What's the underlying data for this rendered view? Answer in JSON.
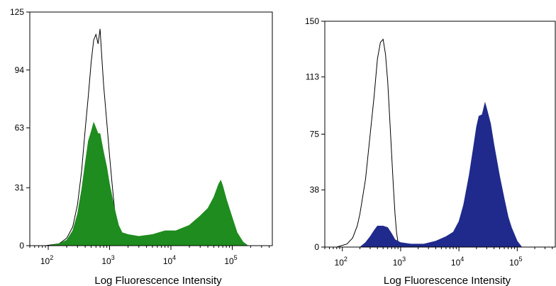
{
  "chart_data": [
    {
      "type": "area",
      "xlabel": "Log Fluorescence Intensity",
      "x_scale": "log",
      "xlim": [
        50,
        450000
      ],
      "x_ticks": [
        100,
        1000,
        10000,
        100000
      ],
      "x_tick_labels": [
        {
          "base": "10",
          "exp": "2"
        },
        {
          "base": "10",
          "exp": "3"
        },
        {
          "base": "10",
          "exp": "4"
        },
        {
          "base": "10",
          "exp": "5"
        }
      ],
      "ylim": [
        0,
        125
      ],
      "y_ticks": [
        0,
        31,
        63,
        94,
        125
      ],
      "series": [
        {
          "style": "outline",
          "color": "#000000",
          "points": [
            [
              90,
              0
            ],
            [
              150,
              1
            ],
            [
              200,
              4
            ],
            [
              250,
              10
            ],
            [
              300,
              22
            ],
            [
              350,
              40
            ],
            [
              400,
              62
            ],
            [
              450,
              80
            ],
            [
              500,
              98
            ],
            [
              550,
              110
            ],
            [
              600,
              113
            ],
            [
              650,
              108
            ],
            [
              700,
              116
            ],
            [
              750,
              100
            ],
            [
              800,
              86
            ],
            [
              900,
              66
            ],
            [
              1000,
              48
            ],
            [
              1100,
              33
            ],
            [
              1200,
              20
            ],
            [
              1350,
              9
            ],
            [
              1500,
              4
            ],
            [
              1800,
              1
            ],
            [
              2500,
              0
            ]
          ]
        },
        {
          "style": "filled",
          "color": "#1e8c1e",
          "points": [
            [
              100,
              0
            ],
            [
              150,
              1
            ],
            [
              200,
              3
            ],
            [
              250,
              8
            ],
            [
              300,
              17
            ],
            [
              350,
              30
            ],
            [
              400,
              44
            ],
            [
              450,
              56
            ],
            [
              500,
              61
            ],
            [
              550,
              66
            ],
            [
              600,
              63
            ],
            [
              650,
              60
            ],
            [
              700,
              60
            ],
            [
              800,
              50
            ],
            [
              900,
              42
            ],
            [
              1000,
              33
            ],
            [
              1200,
              20
            ],
            [
              1400,
              11
            ],
            [
              1600,
              7
            ],
            [
              2000,
              6
            ],
            [
              3000,
              5
            ],
            [
              5000,
              6
            ],
            [
              8000,
              8
            ],
            [
              12000,
              8
            ],
            [
              20000,
              11
            ],
            [
              30000,
              16
            ],
            [
              40000,
              20
            ],
            [
              50000,
              26
            ],
            [
              60000,
              33
            ],
            [
              65000,
              35
            ],
            [
              70000,
              32
            ],
            [
              80000,
              25
            ],
            [
              100000,
              15
            ],
            [
              120000,
              7
            ],
            [
              150000,
              2
            ],
            [
              180000,
              0
            ]
          ]
        }
      ]
    },
    {
      "type": "area",
      "xlabel": "Log Fluorescence Intensity",
      "x_scale": "log",
      "xlim": [
        50,
        450000
      ],
      "x_ticks": [
        100,
        1000,
        10000,
        100000
      ],
      "x_tick_labels": [
        {
          "base": "10",
          "exp": "2"
        },
        {
          "base": "10",
          "exp": "3"
        },
        {
          "base": "10",
          "exp": "4"
        },
        {
          "base": "10",
          "exp": "5"
        }
      ],
      "ylim": [
        0,
        150
      ],
      "y_ticks": [
        0,
        38,
        75,
        113,
        150
      ],
      "series": [
        {
          "style": "outline",
          "color": "#000000",
          "points": [
            [
              80,
              0
            ],
            [
              120,
              2
            ],
            [
              150,
              6
            ],
            [
              180,
              14
            ],
            [
              200,
              22
            ],
            [
              250,
              45
            ],
            [
              300,
              75
            ],
            [
              350,
              100
            ],
            [
              400,
              125
            ],
            [
              450,
              136
            ],
            [
              500,
              138
            ],
            [
              550,
              128
            ],
            [
              600,
              110
            ],
            [
              650,
              85
            ],
            [
              700,
              62
            ],
            [
              750,
              40
            ],
            [
              800,
              22
            ],
            [
              850,
              10
            ],
            [
              900,
              3
            ],
            [
              1000,
              0
            ]
          ]
        },
        {
          "style": "filled",
          "color": "#1f2a8c",
          "points": [
            [
              200,
              0
            ],
            [
              250,
              3
            ],
            [
              300,
              7
            ],
            [
              350,
              11
            ],
            [
              400,
              14
            ],
            [
              500,
              14
            ],
            [
              600,
              13
            ],
            [
              700,
              9
            ],
            [
              800,
              5
            ],
            [
              1000,
              3
            ],
            [
              1500,
              2
            ],
            [
              2500,
              2
            ],
            [
              4000,
              4
            ],
            [
              6000,
              7
            ],
            [
              8000,
              10
            ],
            [
              10000,
              17
            ],
            [
              12000,
              28
            ],
            [
              15000,
              48
            ],
            [
              18000,
              68
            ],
            [
              20000,
              80
            ],
            [
              22000,
              87
            ],
            [
              25000,
              88
            ],
            [
              28000,
              96
            ],
            [
              30000,
              92
            ],
            [
              35000,
              82
            ],
            [
              40000,
              68
            ],
            [
              50000,
              47
            ],
            [
              60000,
              32
            ],
            [
              70000,
              20
            ],
            [
              80000,
              13
            ],
            [
              100000,
              4
            ],
            [
              120000,
              0
            ]
          ]
        }
      ]
    }
  ]
}
